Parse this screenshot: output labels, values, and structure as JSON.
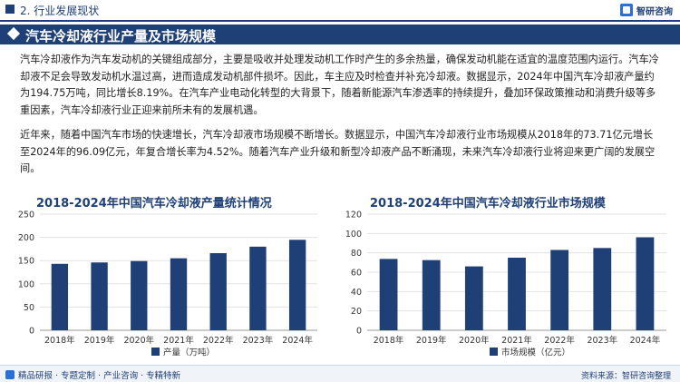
{
  "header": {
    "section_label": "2. 行业发展现状",
    "brand": "智研咨询"
  },
  "title_bar": {
    "title": "汽车冷却液行业产量及市场规模"
  },
  "body": {
    "paragraph1": "汽车冷却液作为汽车发动机的关键组成部分，主要是吸收并处理发动机工作时产生的多余热量，确保发动机能在适宜的温度范围内运行。汽车冷却液不足会导致发动机水温过高，进而造成发动机部件损坏。因此，车主应及时检查并补充冷却液。数据显示，2024年中国汽车冷却液产量约为194.75万吨，同比增长8.19%。在汽车产业电动化转型的大背景下，随着新能源汽车渗透率的持续提升，叠加环保政策推动和消费升级等多重因素，汽车冷却液行业正迎来前所未有的发展机遇。",
    "paragraph2": "近年来，随着中国汽车市场的快速增长，汽车冷却液市场规模不断增长。数据显示，中国汽车冷却液行业市场规模从2018年的73.71亿元增长至2024年的96.09亿元，年复合增长率为4.52%。随着汽车产业升级和新型冷却液产品不断涌现，未来汽车冷却液行业将迎来更广阔的发展空间。"
  },
  "footer": {
    "tagline": "精品研报 · 专题定制 · 产业咨询 · 专精特新",
    "source": "资料来源：智研咨询整理"
  },
  "colors": {
    "primary": "#1f3f77",
    "bar": "#1f3f77",
    "accent": "#2a6fd6"
  },
  "chart_data": [
    {
      "type": "bar",
      "title": "2018-2024年中国汽车冷却液产量统计情况",
      "categories": [
        "2018年",
        "2019年",
        "2020年",
        "2021年",
        "2022年",
        "2023年",
        "2024年"
      ],
      "series": [
        {
          "name": "产量（万吨）",
          "values": [
            143,
            146,
            149,
            155,
            166,
            180,
            194.75
          ]
        }
      ],
      "ylim": [
        0,
        250
      ],
      "yticks": [
        0,
        50,
        100,
        150,
        200,
        250
      ],
      "legend": "bottom",
      "grid": true
    },
    {
      "type": "bar",
      "title": "2018-2024年中国汽车冷却液行业市场规模",
      "categories": [
        "2018年",
        "2019年",
        "2020年",
        "2021年",
        "2022年",
        "2023年",
        "2024年"
      ],
      "series": [
        {
          "name": "市场规模（亿元）",
          "values": [
            73.71,
            72.5,
            66,
            75,
            83,
            85,
            96.09
          ]
        }
      ],
      "ylim": [
        0,
        120
      ],
      "yticks": [
        0,
        20,
        40,
        60,
        80,
        100,
        120
      ],
      "legend": "bottom",
      "grid": true
    }
  ]
}
